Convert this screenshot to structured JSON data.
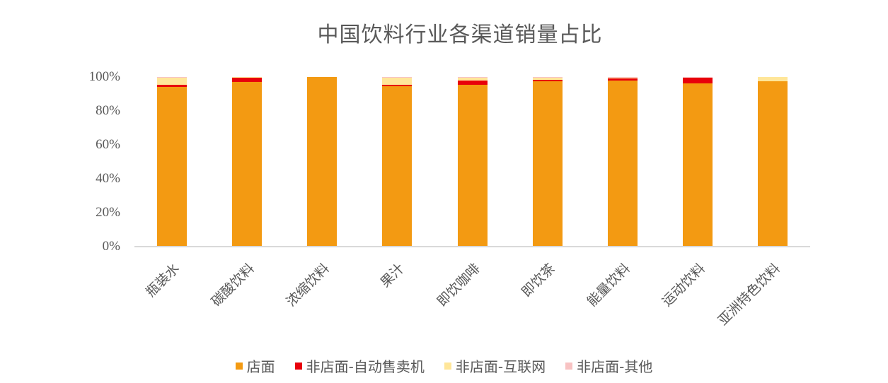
{
  "chart_data": {
    "type": "bar",
    "stacked": true,
    "title": "中国饮料行业各渠道销量占比",
    "xlabel": "",
    "ylabel": "",
    "ylim": [
      0,
      100
    ],
    "yticks": [
      "0%",
      "20%",
      "40%",
      "60%",
      "80%",
      "100%"
    ],
    "grid": false,
    "legend_position": "bottom",
    "categories": [
      "瓶装水",
      "碳酸饮料",
      "浓缩饮料",
      "果汁",
      "即饮咖啡",
      "即饮茶",
      "能量饮料",
      "运动饮料",
      "亚洲特色饮料"
    ],
    "series": [
      {
        "name": "店面",
        "color": "#F39A12",
        "values": [
          94.0,
          97.2,
          100.0,
          94.6,
          95.5,
          97.3,
          97.9,
          96.2,
          97.6
        ]
      },
      {
        "name": "非店面-自动售卖机",
        "color": "#E8000B",
        "values": [
          1.3,
          2.6,
          0.0,
          1.0,
          2.5,
          1.2,
          1.2,
          3.2,
          0.0
        ]
      },
      {
        "name": "非店面-互联网",
        "color": "#FFE699",
        "values": [
          4.5,
          0.1,
          0.0,
          4.2,
          1.8,
          1.3,
          0.5,
          0.4,
          2.4
        ]
      },
      {
        "name": "非店面-其他",
        "color": "#F8C3C3",
        "values": [
          0.2,
          0.1,
          0.0,
          0.2,
          0.2,
          0.2,
          0.4,
          0.2,
          0.0
        ]
      }
    ]
  },
  "legend": {
    "items": [
      {
        "label": "店面",
        "color": "#F39A12"
      },
      {
        "label": "非店面-自动售卖机",
        "color": "#E8000B"
      },
      {
        "label": "非店面-互联网",
        "color": "#FFE699"
      },
      {
        "label": "非店面-其他",
        "color": "#F8C3C3"
      }
    ]
  }
}
